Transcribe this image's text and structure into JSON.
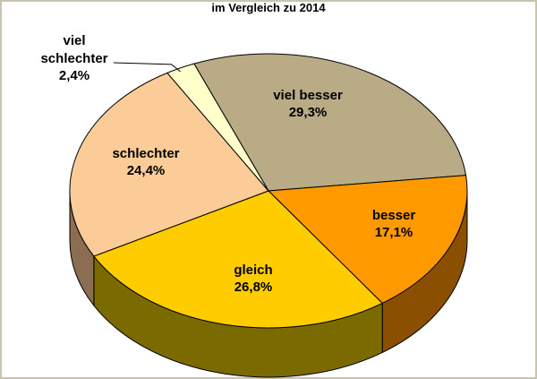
{
  "chart_data": {
    "type": "pie",
    "subtitle": "im Vergleich zu 2014",
    "slices": [
      {
        "label": "viel besser",
        "value": 29.3,
        "value_text": "29,3%",
        "color": "#b9ab85",
        "side_color": "#6f6446"
      },
      {
        "label": "besser",
        "value": 17.1,
        "value_text": "17,1%",
        "color": "#ff9900",
        "side_color": "#8b4f00"
      },
      {
        "label": "gleich",
        "value": 26.8,
        "value_text": "26,8%",
        "color": "#ffcc00",
        "side_color": "#7b6a00"
      },
      {
        "label": "schlechter",
        "value": 24.4,
        "value_text": "24,4%",
        "color": "#fccc98",
        "side_color": "#8b6d52"
      },
      {
        "label": "viel schlechter",
        "value": 2.4,
        "value_text": "2,4%",
        "color": "#ffffcc",
        "side_color": "#9a9a70"
      }
    ],
    "outside_label": {
      "line1": "viel",
      "line2": "schlechter",
      "line3": "2,4%"
    }
  }
}
